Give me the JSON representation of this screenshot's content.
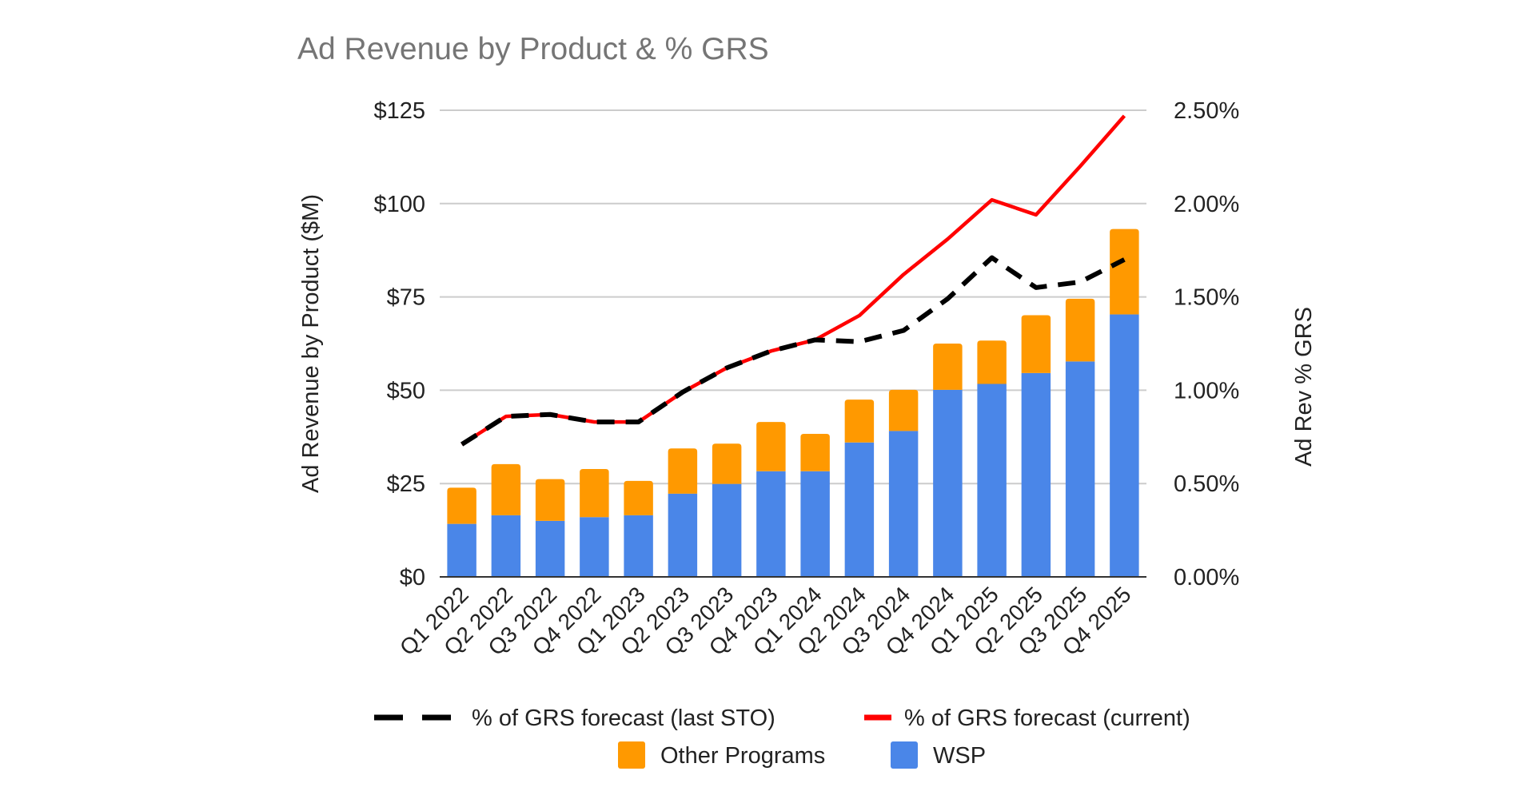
{
  "chart_data": {
    "type": "bar",
    "stacked": true,
    "title": "Ad Revenue by Product & % GRS",
    "xlabel": "",
    "ylabel": "Ad Revenue by Product ($M)",
    "y2label": "Ad Rev % GRS",
    "ylim": [
      0,
      125
    ],
    "y2lim": [
      0,
      2.5
    ],
    "yticks": [
      "$0",
      "$25",
      "$50",
      "$75",
      "$100",
      "$125"
    ],
    "y2ticks": [
      "0.00%",
      "0.50%",
      "1.00%",
      "1.50%",
      "2.00%",
      "2.50%"
    ],
    "grid": true,
    "legend_position": "bottom",
    "categories": [
      "Q1 2022",
      "Q2 2022",
      "Q3 2022",
      "Q4 2022",
      "Q1 2023",
      "Q2 2023",
      "Q3 2023",
      "Q4 2023",
      "Q1 2024",
      "Q2 2024",
      "Q3 2024",
      "Q4 2024",
      "Q1 2025",
      "Q2 2025",
      "Q3 2025",
      "Q4 2025"
    ],
    "series": [
      {
        "name": "WSP",
        "type": "bar",
        "axis": "left",
        "color": "#4a86e8",
        "values": [
          14.2,
          16.5,
          15.0,
          16.0,
          16.5,
          22.3,
          24.9,
          28.3,
          28.3,
          36.0,
          39.1,
          50.1,
          51.7,
          54.6,
          57.7,
          70.3
        ]
      },
      {
        "name": "Other Programs",
        "type": "bar",
        "axis": "left",
        "color": "#ff9900",
        "values": [
          9.7,
          13.7,
          11.2,
          12.9,
          9.2,
          12.1,
          10.8,
          13.2,
          10.0,
          11.5,
          11.0,
          12.4,
          11.6,
          15.5,
          16.8,
          22.9
        ]
      },
      {
        "name": "% of GRS forecast (current)",
        "type": "line",
        "axis": "right",
        "color": "#ff0000",
        "dash": false,
        "values": [
          0.71,
          0.86,
          0.87,
          0.83,
          0.83,
          0.99,
          1.12,
          1.21,
          1.27,
          1.4,
          1.62,
          1.81,
          2.02,
          1.94,
          2.2,
          2.47
        ]
      },
      {
        "name": "% of GRS forecast (last STO)",
        "type": "line",
        "axis": "right",
        "color": "#000000",
        "dash": true,
        "values": [
          0.71,
          0.86,
          0.87,
          0.83,
          0.83,
          0.99,
          1.12,
          1.21,
          1.27,
          1.26,
          1.32,
          1.49,
          1.71,
          1.55,
          1.58,
          1.7
        ]
      }
    ],
    "legend": [
      {
        "label": "% of GRS forecast (last STO)",
        "color": "#000000",
        "style": "dashed-line"
      },
      {
        "label": "% of GRS forecast (current)",
        "color": "#ff0000",
        "style": "line"
      },
      {
        "label": "Other Programs",
        "color": "#ff9900",
        "style": "box"
      },
      {
        "label": "WSP",
        "color": "#4a86e8",
        "style": "box"
      }
    ]
  }
}
